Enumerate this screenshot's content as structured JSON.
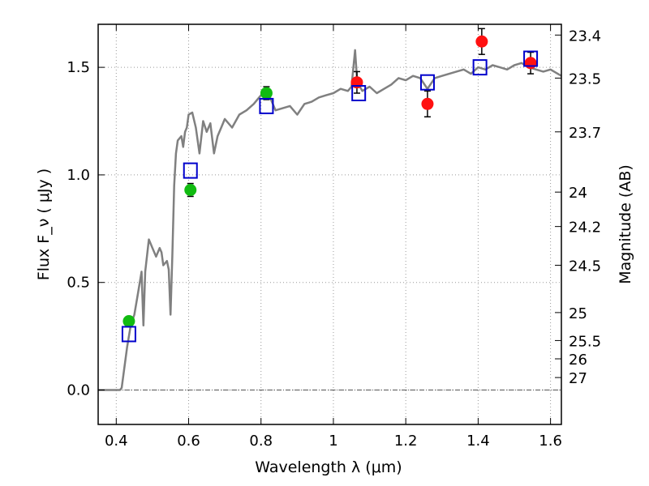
{
  "chart_data": {
    "type": "scatter",
    "xlabel": "Wavelength  λ (μm)",
    "ylabel": "Flux  F_ν  ( μJy )",
    "ylabel_right": "Magnitude (AB)",
    "xlim": [
      0.35,
      1.63
    ],
    "ylim": [
      -0.16,
      1.7
    ],
    "grid": true,
    "x_ticks": [
      0.4,
      0.6,
      0.8,
      1.0,
      1.2,
      1.4,
      1.6
    ],
    "x_tick_labels": [
      "0.4",
      "0.6",
      "0.8",
      "1",
      "1.2",
      "1.4",
      "1.6"
    ],
    "y_ticks": [
      0.0,
      0.5,
      1.0,
      1.5
    ],
    "y_tick_labels": [
      "0.0",
      "0.5",
      "1.0",
      "1.5"
    ],
    "right_ticks": [
      {
        "flux": 1.65,
        "label": "23.4"
      },
      {
        "flux": 1.45,
        "label": "23.5"
      },
      {
        "flux": 1.2,
        "label": "23.7"
      },
      {
        "flux": 0.92,
        "label": "24"
      },
      {
        "flux": 0.76,
        "label": "24.2"
      },
      {
        "flux": 0.58,
        "label": "24.5"
      },
      {
        "flux": 0.36,
        "label": "25"
      },
      {
        "flux": 0.23,
        "label": "25.5"
      },
      {
        "flux": 0.145,
        "label": "26"
      },
      {
        "flux": 0.058,
        "label": "27"
      }
    ],
    "colors": {
      "model": "#808080",
      "green": "#11bb11",
      "red": "#ff1111",
      "box": "#0000cc",
      "grid": "#999999"
    },
    "series": [
      {
        "kind": "line",
        "x": [
          0.35,
          0.41,
          0.415,
          0.43,
          0.44,
          0.45,
          0.46,
          0.47,
          0.475,
          0.48,
          0.49,
          0.5,
          0.51,
          0.52,
          0.525,
          0.53,
          0.54,
          0.545,
          0.55,
          0.555,
          0.56,
          0.565,
          0.57,
          0.58,
          0.585,
          0.59,
          0.595,
          0.6,
          0.61,
          0.62,
          0.63,
          0.64,
          0.65,
          0.66,
          0.67,
          0.68,
          0.69,
          0.7,
          0.72,
          0.74,
          0.76,
          0.78,
          0.8,
          0.82,
          0.84,
          0.86,
          0.88,
          0.9,
          0.92,
          0.94,
          0.96,
          0.98,
          1.0,
          1.02,
          1.04,
          1.05,
          1.06,
          1.065,
          1.07,
          1.08,
          1.1,
          1.12,
          1.14,
          1.16,
          1.18,
          1.2,
          1.22,
          1.24,
          1.26,
          1.28,
          1.3,
          1.32,
          1.34,
          1.36,
          1.38,
          1.4,
          1.42,
          1.44,
          1.46,
          1.48,
          1.5,
          1.52,
          1.54,
          1.56,
          1.58,
          1.6,
          1.63
        ],
        "y": [
          0.0,
          0.0,
          0.01,
          0.2,
          0.3,
          0.35,
          0.45,
          0.55,
          0.3,
          0.55,
          0.7,
          0.66,
          0.62,
          0.66,
          0.64,
          0.58,
          0.6,
          0.56,
          0.35,
          0.62,
          0.95,
          1.1,
          1.16,
          1.18,
          1.13,
          1.2,
          1.22,
          1.28,
          1.29,
          1.22,
          1.1,
          1.25,
          1.2,
          1.24,
          1.1,
          1.18,
          1.22,
          1.26,
          1.22,
          1.28,
          1.3,
          1.33,
          1.37,
          1.38,
          1.3,
          1.31,
          1.32,
          1.28,
          1.33,
          1.34,
          1.36,
          1.37,
          1.38,
          1.4,
          1.39,
          1.41,
          1.58,
          1.45,
          1.42,
          1.39,
          1.41,
          1.38,
          1.4,
          1.42,
          1.45,
          1.44,
          1.46,
          1.45,
          1.4,
          1.45,
          1.46,
          1.47,
          1.48,
          1.49,
          1.47,
          1.5,
          1.49,
          1.51,
          1.5,
          1.49,
          1.51,
          1.52,
          1.5,
          1.49,
          1.48,
          1.49,
          1.46
        ]
      },
      {
        "kind": "points",
        "color": "green",
        "x": [
          0.435,
          0.605,
          0.815
        ],
        "y": [
          0.32,
          0.93,
          1.38
        ],
        "yerr": [
          0.02,
          0.03,
          0.03
        ]
      },
      {
        "kind": "points",
        "color": "red",
        "x": [
          1.065,
          1.26,
          1.41,
          1.545
        ],
        "y": [
          1.43,
          1.33,
          1.62,
          1.52
        ],
        "yerr": [
          0.05,
          0.06,
          0.06,
          0.05
        ]
      },
      {
        "kind": "boxes",
        "color": "box",
        "x": [
          0.435,
          0.605,
          0.815,
          1.07,
          1.26,
          1.405,
          1.545
        ],
        "y": [
          0.26,
          1.02,
          1.32,
          1.38,
          1.43,
          1.5,
          1.54
        ]
      }
    ]
  }
}
